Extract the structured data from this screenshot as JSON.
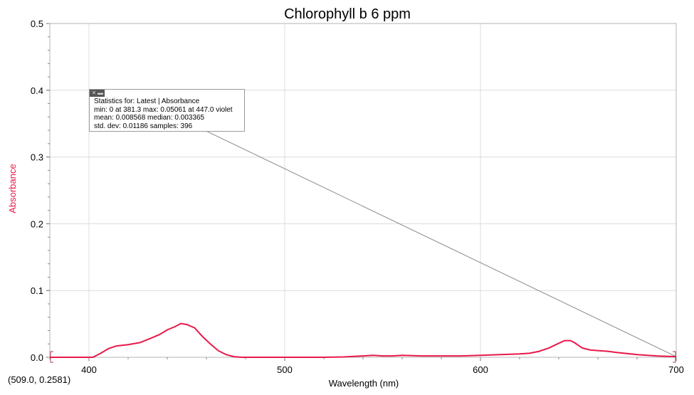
{
  "chart_data": {
    "type": "line",
    "title": "Chlorophyll b 6 ppm",
    "xlabel": "Wavelength (nm)",
    "ylabel": "Absorbance",
    "xlim": [
      380,
      700
    ],
    "ylim": [
      0,
      0.5
    ],
    "x_ticks": [
      "400",
      "500",
      "600",
      "700"
    ],
    "y_ticks": [
      "0.0",
      "0.1",
      "0.2",
      "0.3",
      "0.4",
      "0.5"
    ],
    "grid": true,
    "series": [
      {
        "color": "#e8194a",
        "x": [
          380,
          395,
          402,
          406,
          410,
          414,
          420,
          426,
          432,
          436,
          440,
          444,
          447,
          450,
          454,
          458,
          462,
          466,
          470,
          474,
          478,
          485,
          500,
          520,
          530,
          540,
          545,
          550,
          555,
          560,
          570,
          580,
          590,
          600,
          610,
          620,
          625,
          630,
          635,
          640,
          643,
          646,
          648,
          652,
          656,
          660,
          665,
          670,
          680,
          690,
          700
        ],
        "y": [
          0,
          0,
          0,
          0.006,
          0.013,
          0.017,
          0.019,
          0.022,
          0.029,
          0.034,
          0.041,
          0.046,
          0.0506,
          0.049,
          0.044,
          0.031,
          0.02,
          0.01,
          0.004,
          0.001,
          0,
          0,
          0,
          0,
          0.0005,
          0.002,
          0.003,
          0.002,
          0.002,
          0.003,
          0.002,
          0.002,
          0.002,
          0.003,
          0.004,
          0.005,
          0.006,
          0.009,
          0.014,
          0.021,
          0.025,
          0.025,
          0.022,
          0.014,
          0.011,
          0.01,
          0.009,
          0.007,
          0.004,
          0.002,
          0.001
        ]
      }
    ],
    "annotation_line": {
      "from": [
        452,
        0.35
      ],
      "to": [
        700,
        0.001
      ]
    }
  },
  "stats": {
    "line1": "Statistics for: Latest | Absorbance",
    "line2": "min: 0 at 381.3 max: 0.05061 at 447.0 violet",
    "line3": "mean: 0.008568 median: 0.003365",
    "line4": "std. dev: 0.01186 samples: 396"
  },
  "cursor_readout": "(509.0, 0.2581)",
  "colors": {
    "series": "#e8194a",
    "ylabel": "#e8194a",
    "grid": "#dcdcdc",
    "annotation": "#8a8a8a"
  }
}
